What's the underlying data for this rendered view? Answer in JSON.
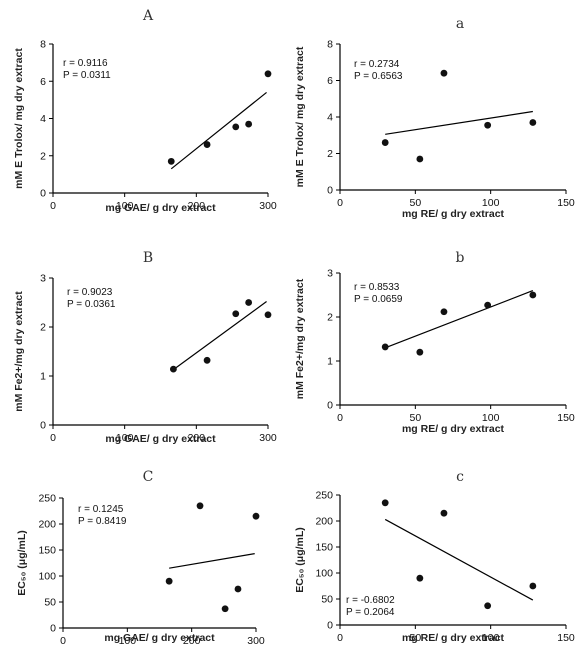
{
  "chart_data": [
    {
      "id": "A",
      "type": "scatter",
      "panel_label": "A",
      "xlabel": "mg GAE/ g dry extract",
      "ylabel": "mM E Trolox/ mg dry extract",
      "xlim": [
        0,
        300
      ],
      "ylim": [
        0,
        8
      ],
      "xticks": [
        "0",
        "100",
        "200",
        "300"
      ],
      "yticks": [
        "0",
        "2",
        "4",
        "6",
        "8"
      ],
      "x": [
        165,
        215,
        255,
        273,
        300
      ],
      "y": [
        1.7,
        2.6,
        3.55,
        3.7,
        6.4
      ],
      "fit_line": {
        "x": [
          165,
          298
        ],
        "y": [
          1.3,
          5.4
        ]
      },
      "annotations": [
        "r = 0.9116",
        "P = 0.0311"
      ]
    },
    {
      "id": "a",
      "type": "scatter",
      "panel_label": "a",
      "xlabel": "mg RE/ g dry extract",
      "ylabel": "mM E Trolox/ mg dry extract",
      "xlim": [
        0,
        150
      ],
      "ylim": [
        0,
        8
      ],
      "xticks": [
        "0",
        "50",
        "100",
        "150"
      ],
      "yticks": [
        "0",
        "2",
        "4",
        "6",
        "8"
      ],
      "x": [
        30,
        53,
        69,
        98,
        128
      ],
      "y": [
        2.6,
        1.7,
        6.4,
        3.55,
        3.7
      ],
      "fit_line": {
        "x": [
          30,
          128
        ],
        "y": [
          3.05,
          4.3
        ]
      },
      "annotations": [
        "r = 0.2734",
        "P = 0.6563"
      ]
    },
    {
      "id": "B",
      "type": "scatter",
      "panel_label": "B",
      "xlabel": "mg GAE/ g dry extract",
      "ylabel": "mM Fe2+/mg dry extract",
      "xlim": [
        0,
        300
      ],
      "ylim": [
        0,
        3
      ],
      "xticks": [
        "0",
        "100",
        "200",
        "300"
      ],
      "yticks": [
        "0",
        "1",
        "2",
        "3"
      ],
      "x": [
        168,
        215,
        255,
        273,
        300
      ],
      "y": [
        1.14,
        1.32,
        2.27,
        2.5,
        2.25
      ],
      "fit_line": {
        "x": [
          168,
          298
        ],
        "y": [
          1.13,
          2.52
        ]
      },
      "annotations": [
        "r = 0.9023",
        "P = 0.0361"
      ]
    },
    {
      "id": "b",
      "type": "scatter",
      "panel_label": "b",
      "xlabel": "mg RE/ g dry extract",
      "ylabel": "mM Fe2+/mg dry extract",
      "xlim": [
        0,
        150
      ],
      "ylim": [
        0,
        3
      ],
      "xticks": [
        "0",
        "50",
        "100",
        "150"
      ],
      "yticks": [
        "0",
        "1",
        "2",
        "3"
      ],
      "x": [
        30,
        53,
        69,
        98,
        128
      ],
      "y": [
        1.32,
        1.2,
        2.12,
        2.27,
        2.5
      ],
      "fit_line": {
        "x": [
          30,
          128
        ],
        "y": [
          1.3,
          2.6
        ]
      },
      "annotations": [
        "r = 0.8533",
        "P = 0.0659"
      ]
    },
    {
      "id": "C",
      "type": "scatter",
      "panel_label": "C",
      "xlabel": "mg GAE/ g dry extract",
      "ylabel": "EC₅₀ (μg/mL)",
      "xlim": [
        0,
        300
      ],
      "ylim": [
        0,
        250
      ],
      "xticks": [
        "0",
        "100",
        "200",
        "300"
      ],
      "yticks": [
        "0",
        "50",
        "100",
        "150",
        "200",
        "250"
      ],
      "x": [
        165,
        213,
        252,
        272,
        300
      ],
      "y": [
        90,
        235,
        37,
        75,
        215
      ],
      "fit_line": {
        "x": [
          165,
          298
        ],
        "y": [
          115,
          143
        ]
      },
      "annotations": [
        "r = 0.1245",
        "P = 0.8419"
      ]
    },
    {
      "id": "c",
      "type": "scatter",
      "panel_label": "c",
      "xlabel": "mg RE/ g dry extract",
      "ylabel": "EC₅₀ (μg/mL)",
      "xlim": [
        0,
        150
      ],
      "ylim": [
        0,
        250
      ],
      "xticks": [
        "0",
        "50",
        "100",
        "150"
      ],
      "yticks": [
        "0",
        "50",
        "100",
        "150",
        "200",
        "250"
      ],
      "x": [
        30,
        53,
        69,
        98,
        128
      ],
      "y": [
        235,
        90,
        215,
        37,
        75
      ],
      "fit_line": {
        "x": [
          30,
          128
        ],
        "y": [
          203,
          48
        ]
      },
      "annotations": [
        "r = -0.6802",
        "P = 0.2064"
      ]
    }
  ]
}
